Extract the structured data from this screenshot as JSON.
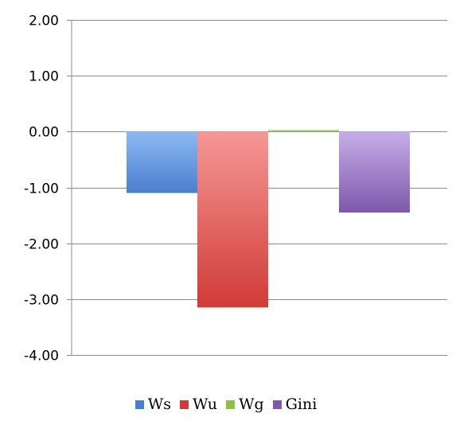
{
  "chart_data": {
    "type": "bar",
    "categories": [
      "Ws",
      "Wu",
      "Wg",
      "Gini"
    ],
    "values": [
      -1.1,
      -3.15,
      0.02,
      -1.45
    ],
    "ylim": [
      -4,
      2
    ],
    "yticks": [
      2,
      1,
      0,
      -1,
      -2,
      -3,
      -4
    ],
    "ytick_labels": [
      "2.00",
      "1.00",
      "0.00",
      "-1.00",
      "-2.00",
      "-3.00",
      "-4.00"
    ],
    "title": "",
    "xlabel": "",
    "ylabel": "",
    "grid": true,
    "legend_position": "bottom",
    "series": [
      {
        "name": "Ws",
        "value": -1.1,
        "color_top": "#8db8f2",
        "color_bottom": "#4a7fcf"
      },
      {
        "name": "Wu",
        "value": -3.15,
        "color_top": "#f59896",
        "color_bottom": "#d03b37"
      },
      {
        "name": "Wg",
        "value": 0.02,
        "color_top": "#b7dd7a",
        "color_bottom": "#8cc14a"
      },
      {
        "name": "Gini",
        "value": -1.45,
        "color_top": "#c7aee8",
        "color_bottom": "#7d58ad"
      }
    ]
  },
  "colors": {
    "grid": "#8c8c8c",
    "axis": "#8c8c8c"
  }
}
